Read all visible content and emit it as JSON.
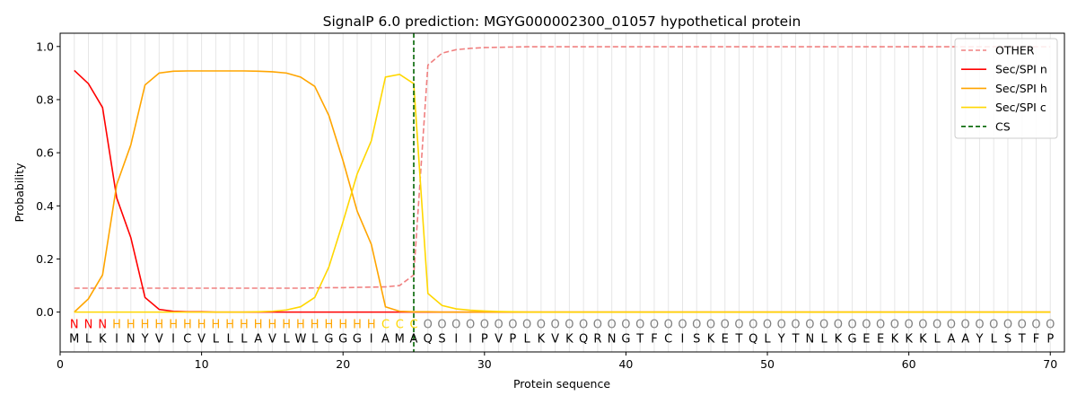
{
  "chart_data": {
    "type": "line",
    "title": "SignalP 6.0 prediction: MGYG000002300_01057 hypothetical protein",
    "xlabel": "Protein sequence",
    "ylabel": "Probability",
    "xlim": [
      0,
      71
    ],
    "ylim": [
      -0.15,
      1.05
    ],
    "xticks": [
      0,
      10,
      20,
      30,
      40,
      50,
      60,
      70
    ],
    "yticks": [
      0.0,
      0.2,
      0.4,
      0.6,
      0.8,
      1.0
    ],
    "grid": "vertical lines at every residue position",
    "legend_placement": "top-right",
    "cleavage_site": 25,
    "sequence": [
      "M",
      "L",
      "K",
      "I",
      "N",
      "Y",
      "V",
      "I",
      "C",
      "V",
      "L",
      "L",
      "L",
      "A",
      "V",
      "L",
      "W",
      "L",
      "G",
      "G",
      "G",
      "I",
      "A",
      "M",
      "A",
      "Q",
      "S",
      "I",
      "I",
      "P",
      "V",
      "P",
      "L",
      "K",
      "V",
      "K",
      "Q",
      "R",
      "N",
      "G",
      "T",
      "F",
      "C",
      "I",
      "S",
      "K",
      "E",
      "T",
      "Q",
      "L",
      "Y",
      "T",
      "N",
      "L",
      "K",
      "G",
      "E",
      "E",
      "K",
      "K",
      "K",
      "L",
      "A",
      "A",
      "Y",
      "L",
      "S",
      "T",
      "F",
      "P"
    ],
    "labels": [
      "N",
      "N",
      "N",
      "H",
      "H",
      "H",
      "H",
      "H",
      "H",
      "H",
      "H",
      "H",
      "H",
      "H",
      "H",
      "H",
      "H",
      "H",
      "H",
      "H",
      "H",
      "H",
      "C",
      "C",
      "C",
      "O",
      "O",
      "O",
      "O",
      "O",
      "O",
      "O",
      "O",
      "O",
      "O",
      "O",
      "O",
      "O",
      "O",
      "O",
      "O",
      "O",
      "O",
      "O",
      "O",
      "O",
      "O",
      "O",
      "O",
      "O",
      "O",
      "O",
      "O",
      "O",
      "O",
      "O",
      "O",
      "O",
      "O",
      "O",
      "O",
      "O",
      "O",
      "O",
      "O",
      "O",
      "O",
      "O",
      "O",
      "O"
    ],
    "label_colors": {
      "N": "#ff0000",
      "H": "#ffa500",
      "C": "#ffd700",
      "O": "#808080"
    },
    "series": [
      {
        "name": "OTHER",
        "color": "#f08080",
        "style": "dashed",
        "values": [
          0.09,
          0.09,
          0.09,
          0.09,
          0.09,
          0.09,
          0.09,
          0.09,
          0.09,
          0.09,
          0.09,
          0.09,
          0.09,
          0.09,
          0.09,
          0.09,
          0.09,
          0.091,
          0.092,
          0.092,
          0.093,
          0.094,
          0.095,
          0.1,
          0.14,
          0.93,
          0.975,
          0.988,
          0.993,
          0.996,
          0.997,
          0.998,
          0.999,
          0.999,
          0.999,
          0.999,
          0.999,
          0.999,
          0.999,
          0.999,
          0.999,
          0.999,
          0.999,
          0.999,
          0.999,
          0.999,
          0.999,
          0.999,
          0.999,
          0.999,
          0.999,
          0.999,
          0.999,
          0.999,
          0.999,
          0.999,
          0.999,
          0.999,
          0.999,
          0.999,
          0.999,
          0.999,
          0.999,
          0.999,
          0.999,
          0.999,
          0.999,
          0.999,
          0.999,
          0.999
        ]
      },
      {
        "name": "Sec/SPI n",
        "color": "#ff0000",
        "style": "solid",
        "values": [
          0.91,
          0.86,
          0.77,
          0.43,
          0.28,
          0.055,
          0.01,
          0.003,
          0.001,
          0.001,
          0,
          0,
          0,
          0,
          0,
          0,
          0,
          0,
          0,
          0,
          0,
          0,
          0,
          0,
          0,
          0,
          0,
          0,
          0,
          0,
          0,
          0,
          0,
          0,
          0,
          0,
          0,
          0,
          0,
          0,
          0,
          0,
          0,
          0,
          0,
          0,
          0,
          0,
          0,
          0,
          0,
          0,
          0,
          0,
          0,
          0,
          0,
          0,
          0,
          0,
          0,
          0,
          0,
          0,
          0,
          0,
          0,
          0,
          0,
          0
        ]
      },
      {
        "name": "Sec/SPI h",
        "color": "#ffa500",
        "style": "solid",
        "values": [
          0.0,
          0.05,
          0.14,
          0.48,
          0.63,
          0.855,
          0.9,
          0.907,
          0.908,
          0.908,
          0.908,
          0.908,
          0.908,
          0.907,
          0.905,
          0.9,
          0.885,
          0.85,
          0.74,
          0.57,
          0.38,
          0.255,
          0.02,
          0.003,
          0.001,
          0.001,
          0,
          0,
          0,
          0,
          0,
          0,
          0,
          0,
          0,
          0,
          0,
          0,
          0,
          0,
          0,
          0,
          0,
          0,
          0,
          0,
          0,
          0,
          0,
          0,
          0,
          0,
          0,
          0,
          0,
          0,
          0,
          0,
          0,
          0,
          0,
          0,
          0,
          0,
          0,
          0,
          0,
          0,
          0,
          0
        ]
      },
      {
        "name": "Sec/SPI c",
        "color": "#ffd700",
        "style": "solid",
        "values": [
          0,
          0,
          0,
          0,
          0,
          0,
          0,
          0,
          0,
          0,
          0,
          0,
          0,
          0.001,
          0.003,
          0.008,
          0.02,
          0.055,
          0.17,
          0.34,
          0.52,
          0.645,
          0.885,
          0.895,
          0.86,
          0.07,
          0.025,
          0.012,
          0.007,
          0.004,
          0.002,
          0.001,
          0,
          0,
          0,
          0,
          0,
          0,
          0,
          0,
          0,
          0,
          0,
          0,
          0,
          0,
          0,
          0,
          0,
          0,
          0,
          0,
          0,
          0,
          0,
          0,
          0,
          0,
          0,
          0,
          0,
          0,
          0,
          0,
          0,
          0,
          0,
          0,
          0,
          0
        ]
      }
    ],
    "cs_line": {
      "name": "CS",
      "color": "#006400",
      "style": "dashed"
    }
  }
}
